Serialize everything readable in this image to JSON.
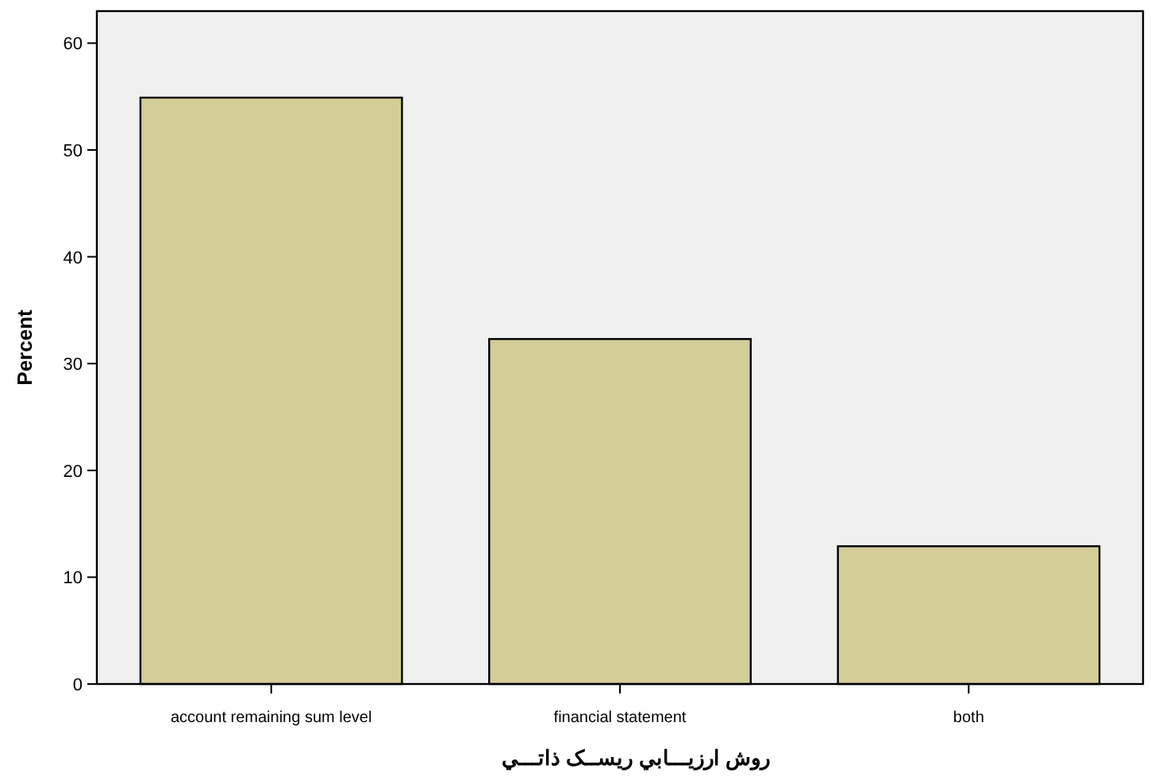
{
  "chart_data": {
    "type": "bar",
    "xlabel": "روش ارزيـــابي ريســک ذاتـــي",
    "ylabel": "Percent",
    "categories": [
      "account remaining sum level",
      "financial statement",
      "both"
    ],
    "values": [
      54.9,
      32.3,
      12.9
    ],
    "color": "#d3cd98",
    "ylim": [
      0,
      63
    ],
    "yticks": [
      0,
      10,
      20,
      30,
      40,
      50,
      60
    ]
  }
}
